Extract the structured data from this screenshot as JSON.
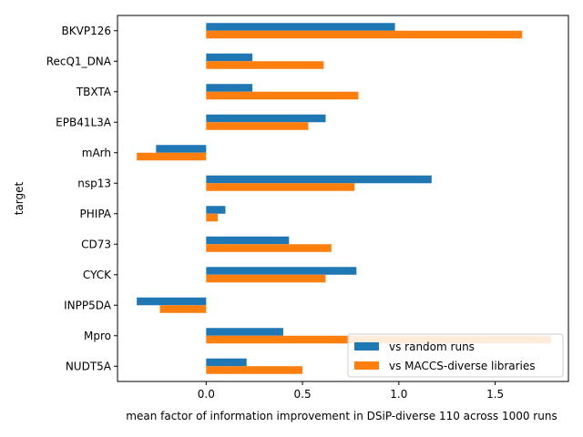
{
  "chart_data": {
    "type": "bar",
    "orientation": "horizontal",
    "categories": [
      "BKVP126",
      "RecQ1_DNA",
      "TBXTA",
      "EPB41L3A",
      "mArh",
      "nsp13",
      "PHIPA",
      "CD73",
      "CYCK",
      "INPP5DA",
      "Mpro",
      "NUDT5A"
    ],
    "series": [
      {
        "name": "vs random runs",
        "color": "#1f77b4",
        "values": [
          0.98,
          0.24,
          0.24,
          0.62,
          -0.26,
          1.17,
          0.1,
          0.43,
          0.78,
          -0.36,
          0.4,
          0.21
        ]
      },
      {
        "name": "vs MACCS-diverse libraries",
        "color": "#ff7f0e",
        "values": [
          1.64,
          0.61,
          0.79,
          0.53,
          -0.36,
          0.77,
          0.06,
          0.65,
          0.62,
          -0.24,
          1.79,
          0.5
        ]
      }
    ],
    "xlabel": "mean factor of information improvement in DSiP-diverse 110 across 1000 runs",
    "ylabel": "target",
    "xlim": [
      -0.46,
      1.88
    ],
    "xticks": [
      "0.0",
      "0.5",
      "1.0",
      "1.5"
    ],
    "legend": "lower-right",
    "grid": false
  }
}
